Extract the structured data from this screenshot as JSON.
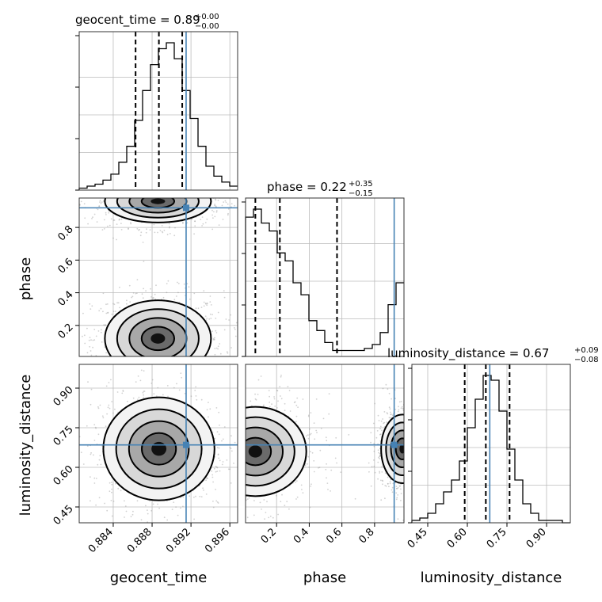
{
  "chart_data": {
    "type": "corner",
    "parameters": [
      "geocent_time",
      "phase",
      "luminosity_distance"
    ],
    "truth": {
      "geocent_time": 0.8915,
      "phase": 0.92,
      "luminosity_distance": 0.685
    },
    "truth_color": "#4682b4",
    "ranges": {
      "geocent_time": [
        0.8805,
        0.8968
      ],
      "phase": [
        0.01,
        0.98
      ],
      "luminosity_distance": [
        0.39,
        0.99
      ]
    },
    "ticks": {
      "geocent_time": [
        "0.884",
        "0.888",
        "0.892",
        "0.896"
      ],
      "phase": [
        "0.2",
        "0.4",
        "0.6",
        "0.8"
      ],
      "luminosity_distance": [
        "0.45",
        "0.60",
        "0.75",
        "0.90"
      ],
      "luminosity_distance_y": [
        "0.45",
        "0.60",
        "0.75",
        "0.90"
      ]
    },
    "titles": [
      {
        "param": "geocent_time",
        "text": "geocent_time = 0.89",
        "sup": "+0.00",
        "sub": "−0.00"
      },
      {
        "param": "phase",
        "text": "phase = 0.22",
        "sup": "+0.35",
        "sub": "−0.15"
      },
      {
        "param": "luminosity_distance",
        "text": "luminosity_distance = 0.67",
        "sup": "+0.09",
        "sub": "−0.08"
      }
    ],
    "quantiles": {
      "geocent_time": [
        0.8863,
        0.8887,
        0.8911
      ],
      "phase": [
        0.07,
        0.22,
        0.57
      ],
      "luminosity_distance": [
        0.59,
        0.67,
        0.76
      ]
    },
    "histograms": {
      "geocent_time": {
        "edges_range": [
          0.8805,
          0.8968
        ],
        "counts": [
          1,
          2,
          3,
          5,
          8,
          14,
          22,
          35,
          50,
          63,
          71,
          74,
          66,
          50,
          36,
          22,
          12,
          7,
          4,
          2
        ]
      },
      "phase": {
        "edges_range": [
          0.01,
          0.98
        ],
        "counts": [
          70,
          74,
          67,
          63,
          52,
          48,
          37,
          31,
          18,
          13,
          7,
          3,
          3,
          3,
          3,
          4,
          6,
          12,
          26,
          37
        ]
      },
      "luminosity_distance": {
        "edges_range": [
          0.39,
          0.99
        ],
        "counts": [
          1,
          2,
          4,
          8,
          13,
          18,
          26,
          40,
          52,
          62,
          60,
          47,
          31,
          18,
          8,
          4,
          1,
          1,
          1,
          0
        ]
      }
    },
    "blobs_2d": {
      "phase_vs_geocent_time": [
        {
          "cx": 0.8886,
          "cy": 0.12,
          "sx": 0.0021,
          "sy": 0.09
        },
        {
          "cx": 0.8886,
          "cy": 0.96,
          "sx": 0.0021,
          "sy": 0.05
        }
      ],
      "luminosity_distance_vs_geocent_time": [
        {
          "cx": 0.8887,
          "cy": 0.67,
          "sx": 0.0022,
          "sy": 0.075
        }
      ],
      "luminosity_distance_vs_phase": [
        {
          "cx": 0.07,
          "cy": 0.66,
          "sx": 0.12,
          "sy": 0.065
        },
        {
          "cx": 0.97,
          "cy": 0.67,
          "sx": 0.05,
          "sy": 0.05
        }
      ]
    },
    "xlabels": [
      "geocent_time",
      "phase",
      "luminosity_distance"
    ],
    "ylabels": [
      "phase",
      "luminosity_distance"
    ],
    "grid": true
  }
}
